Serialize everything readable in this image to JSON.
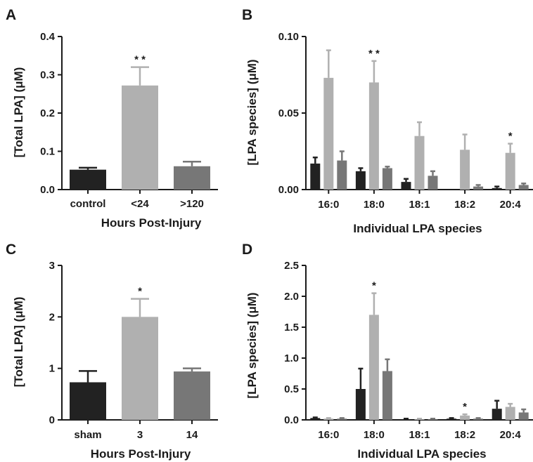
{
  "colors": {
    "series": [
      "#222222",
      "#b0b0b0",
      "#777777"
    ],
    "axis": "#1a1a1a"
  },
  "chart_data": [
    {
      "panel": "A",
      "type": "bar",
      "categories": [
        "control",
        "<24",
        ">120"
      ],
      "values": [
        0.052,
        0.272,
        0.061
      ],
      "errors": [
        0.005,
        0.048,
        0.012
      ],
      "significance": [
        "",
        "* *",
        ""
      ],
      "xlabel": "Hours Post-Injury",
      "ylabel": "[Total LPA] (μM)",
      "ylim": [
        0,
        0.4
      ],
      "yticks": [
        "0.0",
        "0.1",
        "0.2",
        "0.3",
        "0.4"
      ],
      "grid": false
    },
    {
      "panel": "B",
      "type": "bar",
      "categories": [
        "16:0",
        "18:0",
        "18:1",
        "18:2",
        "20:4"
      ],
      "series": [
        {
          "values": [
            0.017,
            0.012,
            0.005,
            0.0,
            0.001
          ],
          "errors": [
            0.004,
            0.002,
            0.002,
            0.0,
            0.001
          ]
        },
        {
          "values": [
            0.073,
            0.07,
            0.035,
            0.026,
            0.024
          ],
          "errors": [
            0.018,
            0.014,
            0.009,
            0.01,
            0.006
          ]
        },
        {
          "values": [
            0.019,
            0.014,
            0.009,
            0.002,
            0.003
          ],
          "errors": [
            0.006,
            0.001,
            0.003,
            0.001,
            0.001
          ]
        }
      ],
      "significance": [
        [
          "",
          "",
          "",
          "",
          ""
        ],
        [
          "",
          "* *",
          "",
          "",
          "*"
        ],
        [
          "",
          "",
          "",
          "",
          ""
        ]
      ],
      "xlabel": "Individual LPA species",
      "ylabel": "[LPA species] (μM)",
      "ylim": [
        0,
        0.1
      ],
      "yticks": [
        "0.00",
        "0.05",
        "0.10"
      ],
      "grid": false
    },
    {
      "panel": "C",
      "type": "bar",
      "categories": [
        "sham",
        "3",
        "14"
      ],
      "values": [
        0.73,
        2.0,
        0.94
      ],
      "errors": [
        0.22,
        0.35,
        0.06
      ],
      "significance": [
        "",
        "*",
        ""
      ],
      "xlabel": "Hours Post-Injury",
      "ylabel": "[Total LPA] (μM)",
      "ylim": [
        0,
        3
      ],
      "yticks": [
        "0",
        "1",
        "2",
        "3"
      ],
      "grid": false
    },
    {
      "panel": "D",
      "type": "bar",
      "categories": [
        "16:0",
        "18:0",
        "18:1",
        "18:2",
        "20:4"
      ],
      "series": [
        {
          "values": [
            0.03,
            0.5,
            0.01,
            0.02,
            0.18
          ],
          "errors": [
            0.01,
            0.33,
            0.01,
            0.01,
            0.13
          ]
        },
        {
          "values": [
            0.02,
            1.7,
            0.01,
            0.07,
            0.21
          ],
          "errors": [
            0.01,
            0.35,
            0.01,
            0.02,
            0.05
          ]
        },
        {
          "values": [
            0.02,
            0.79,
            0.01,
            0.02,
            0.12
          ],
          "errors": [
            0.01,
            0.19,
            0.01,
            0.01,
            0.05
          ]
        }
      ],
      "significance": [
        [
          "",
          "",
          "",
          "",
          ""
        ],
        [
          "",
          "*",
          "",
          "*",
          ""
        ],
        [
          "",
          "",
          "",
          "",
          ""
        ]
      ],
      "xlabel": "Individual LPA species",
      "ylabel": "[LPA species] (μM)",
      "ylim": [
        0,
        2.5
      ],
      "yticks": [
        "0.0",
        "0.5",
        "1.0",
        "1.5",
        "2.0",
        "2.5"
      ],
      "grid": false
    }
  ]
}
